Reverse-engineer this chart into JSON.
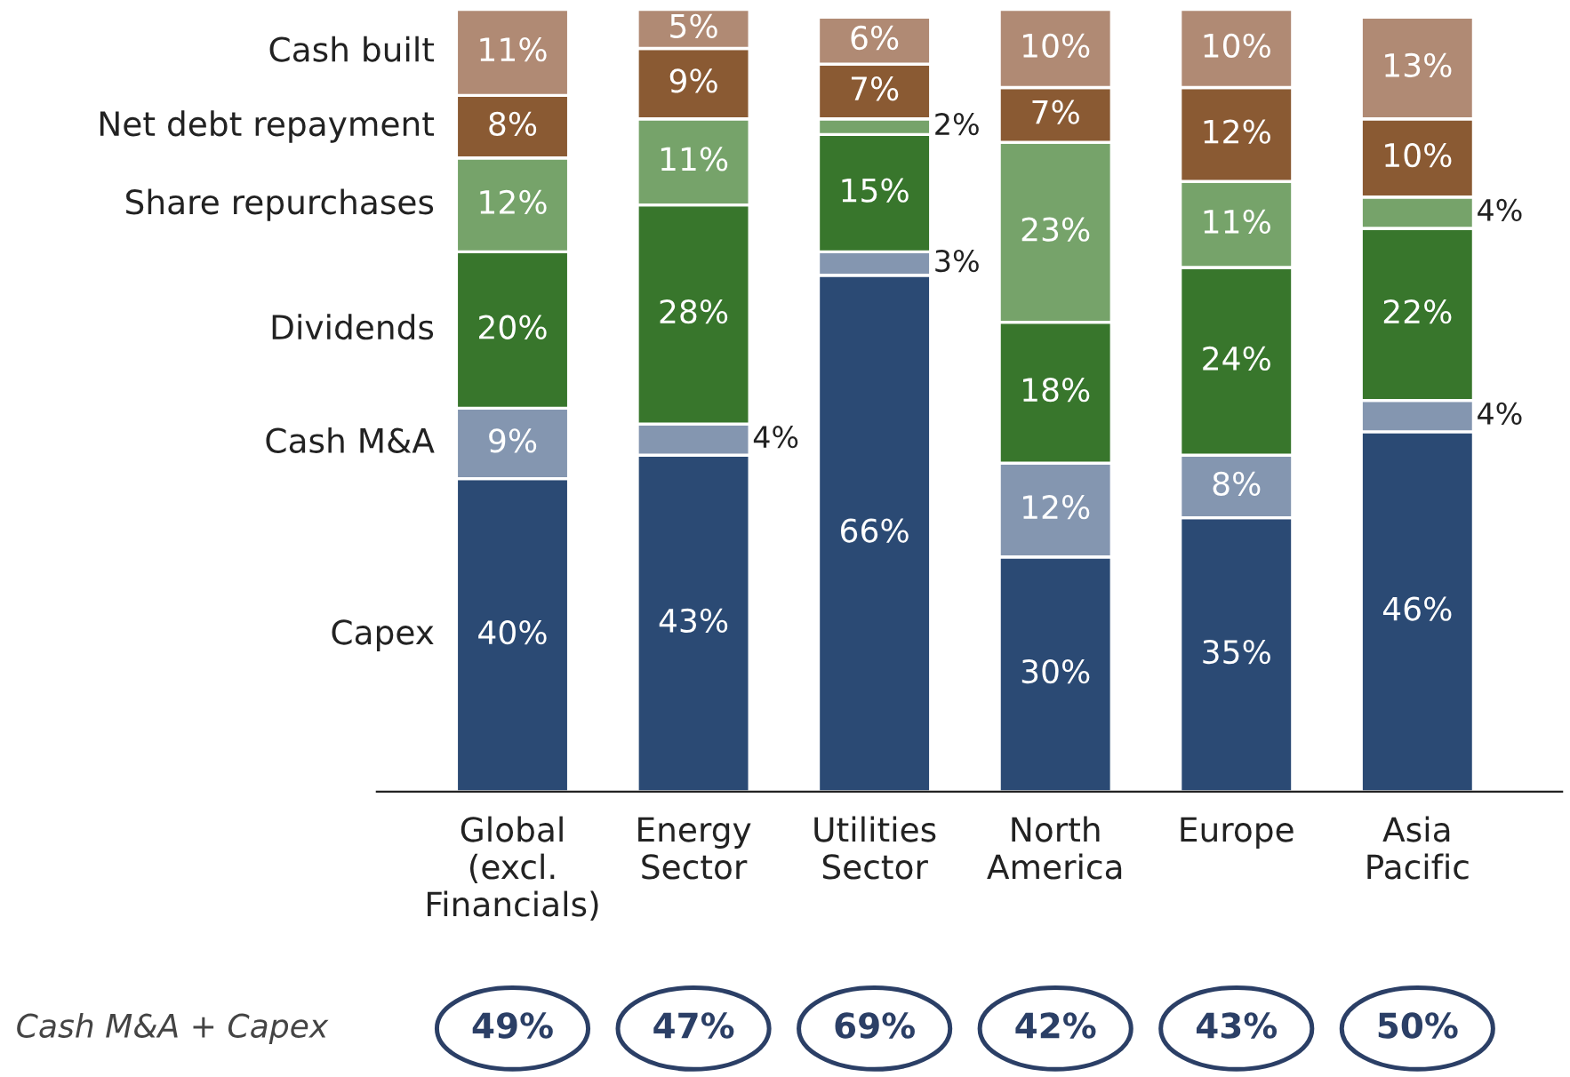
{
  "chart_data": {
    "type": "bar",
    "stacked": true,
    "legend": "left",
    "categories": [
      "Global\n(excl.\nFinancials)",
      "Energy\nSector",
      "Utilities\nSector",
      "North\nAmerica",
      "Europe",
      "Asia\nPacific"
    ],
    "series": [
      {
        "name": "Capex",
        "color": "#2b4a74",
        "values": [
          40,
          43,
          66,
          30,
          35,
          46
        ],
        "value_labels": [
          "40%",
          "43%",
          "66%",
          "30%",
          "35%",
          "46%"
        ]
      },
      {
        "name": "Cash M&A",
        "color": "#8496b0",
        "values": [
          9,
          4,
          3,
          12,
          8,
          4
        ],
        "value_labels": [
          "9%",
          "4%",
          "3%",
          "12%",
          "8%",
          "4%"
        ]
      },
      {
        "name": "Dividends",
        "color": "#38762c",
        "values": [
          20,
          28,
          15,
          18,
          24,
          22
        ],
        "value_labels": [
          "20%",
          "28%",
          "15%",
          "18%",
          "24%",
          "22%"
        ]
      },
      {
        "name": "Share repurchases",
        "color": "#76a36a",
        "values": [
          12,
          11,
          2,
          23,
          11,
          4
        ],
        "value_labels": [
          "12%",
          "11%",
          "2%",
          "23%",
          "11%",
          "4%"
        ]
      },
      {
        "name": "Net debt repayment",
        "color": "#8a5a33",
        "values": [
          8,
          9,
          7,
          7,
          12,
          10
        ],
        "value_labels": [
          "8%",
          "9%",
          "7%",
          "7%",
          "12%",
          "10%"
        ]
      },
      {
        "name": "Cash built",
        "color": "#b08a74",
        "values": [
          11,
          5,
          6,
          10,
          10,
          13
        ],
        "value_labels": [
          "11%",
          "5%",
          "6%",
          "10%",
          "10%",
          "13%"
        ]
      }
    ],
    "annotations": [
      "Cash M&A + Capex",
      "49%",
      "47%",
      "69%",
      "42%",
      "43%",
      "50%"
    ]
  }
}
